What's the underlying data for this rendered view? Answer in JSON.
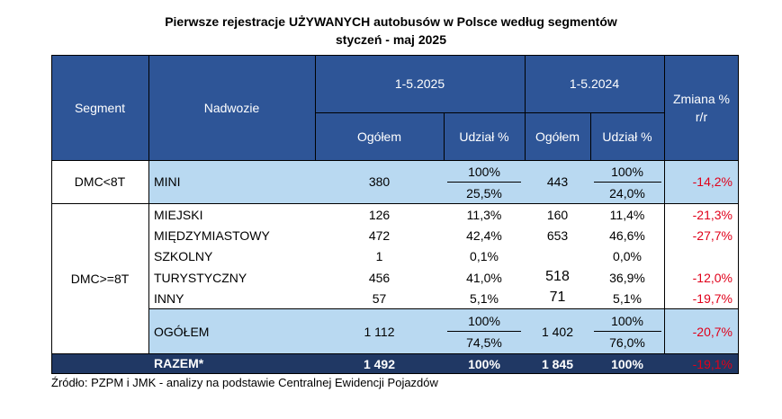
{
  "title_line1": "Pierwsze rejestracje UŻYWANYCH autobusów w Polsce według segmentów",
  "title_line2": "styczeń - maj  2025",
  "headers": {
    "segment": "Segment",
    "body": "Nadwozie",
    "period_2025": "1-5.2025",
    "period_2024": "1-5.2024",
    "change": "Zmiana % r/r",
    "total": "Ogółem",
    "share": "Udział %"
  },
  "chart_data": {
    "type": "table",
    "title": "Pierwsze rejestracje UŻYWANYCH autobusów w Polsce według segmentów",
    "subtitle": "styczeń - maj  2025",
    "columns": [
      "Segment",
      "Nadwozie",
      "1-5.2025 Ogółem",
      "1-5.2025 Udział %",
      "1-5.2024 Ogółem",
      "1-5.2024 Udział %",
      "Zmiana % r/r"
    ],
    "groups": [
      {
        "segment": "DMC<8T",
        "rows": [
          {
            "body": "MINI",
            "total_2025": "380",
            "share_2025_top": "100%",
            "share_2025": "25,5%",
            "total_2024": "443",
            "share_2024_top": "100%",
            "share_2024": "24,0%",
            "change": "-14,2%"
          }
        ]
      },
      {
        "segment": "DMC>=8T",
        "rows": [
          {
            "body": "MIEJSKI",
            "total_2025": "126",
            "share_2025": "11,3%",
            "total_2024": "160",
            "share_2024": "11,4%",
            "change": "-21,3%"
          },
          {
            "body": "MIĘDZYMIASTOWY",
            "total_2025": "472",
            "share_2025": "42,4%",
            "total_2024": "653",
            "share_2024": "46,6%",
            "change": "-27,7%"
          },
          {
            "body": "SZKOLNY",
            "total_2025": "1",
            "share_2025": "0,1%",
            "total_2024": "",
            "share_2024": "0,0%",
            "change": ""
          },
          {
            "body": "TURYSTYCZNY",
            "total_2025": "456",
            "share_2025": "41,0%",
            "total_2024": "518",
            "share_2024": "36,9%",
            "change": "-12,0%"
          },
          {
            "body": "INNY",
            "total_2025": "57",
            "share_2025": "5,1%",
            "total_2024": "71",
            "share_2024": "5,1%",
            "change": "-19,7%"
          }
        ],
        "subtotal": {
          "body": "OGÓŁEM",
          "total_2025": "1 112",
          "share_2025_top": "100%",
          "share_2025": "74,5%",
          "total_2024": "1 402",
          "share_2024_top": "100%",
          "share_2024": "76,0%",
          "change": "-20,7%"
        }
      }
    ],
    "grand_total": {
      "label": "RAZEM*",
      "total_2025": "1 492",
      "share_2025": "100%",
      "total_2024": "1 845",
      "share_2024": "100%",
      "change": "-19,1%"
    }
  },
  "source": "Źródło: PZPM i JMK - analizy na podstawie Centralnej Ewidencji Pojazdów",
  "colors": {
    "header_bg": "#2e5597",
    "highlight_bg": "#b9d9f1",
    "total_bg": "#203864",
    "negative": "#e0001a"
  }
}
